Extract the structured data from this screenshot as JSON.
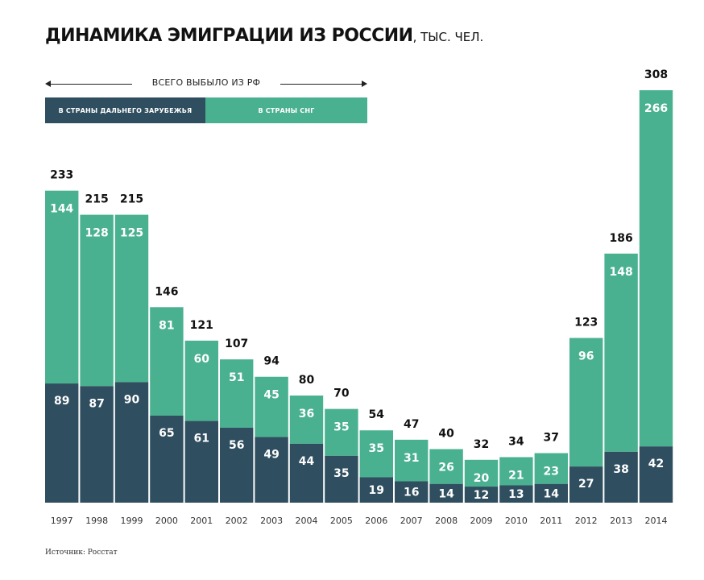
{
  "title": "ДИНАМИКА ЭМИГРАЦИИ ИЗ РОССИИ",
  "title_unit": ", ТЫС. ЧЕЛ.",
  "legend": {
    "total": "ВСЕГО ВЫБЫЛО ИЗ РФ",
    "far_abroad": "В СТРАНЫ ДАЛЬНЕГО ЗАРУБЕЖЬЯ",
    "cis": "В СТРАНЫ СНГ"
  },
  "source": "Источник: Росстат",
  "colors": {
    "far_abroad": "#2f4e5f",
    "cis": "#4ab190",
    "total_label": "#111111",
    "axis_label": "#333333"
  },
  "chart_data": {
    "type": "bar",
    "stacked": true,
    "categories": [
      "1997",
      "1998",
      "1999",
      "2000",
      "2001",
      "2002",
      "2003",
      "2004",
      "2005",
      "2006",
      "2007",
      "2008",
      "2009",
      "2010",
      "2011",
      "2012",
      "2013",
      "2014"
    ],
    "series": [
      {
        "name": "В СТРАНЫ ДАЛЬНЕГО ЗАРУБЕЖЬЯ",
        "values": [
          89,
          87,
          90,
          65,
          61,
          56,
          49,
          44,
          35,
          19,
          16,
          14,
          12,
          13,
          14,
          27,
          38,
          42
        ]
      },
      {
        "name": "В СТРАНЫ СНГ",
        "values": [
          144,
          128,
          125,
          81,
          60,
          51,
          45,
          36,
          35,
          35,
          31,
          26,
          20,
          21,
          23,
          96,
          148,
          266
        ]
      }
    ],
    "totals": [
      233,
      215,
      215,
      146,
      121,
      107,
      94,
      80,
      70,
      54,
      47,
      40,
      32,
      34,
      37,
      123,
      186,
      308
    ],
    "ylim": [
      0,
      308
    ],
    "grid": false,
    "legend_position": "top-left"
  }
}
